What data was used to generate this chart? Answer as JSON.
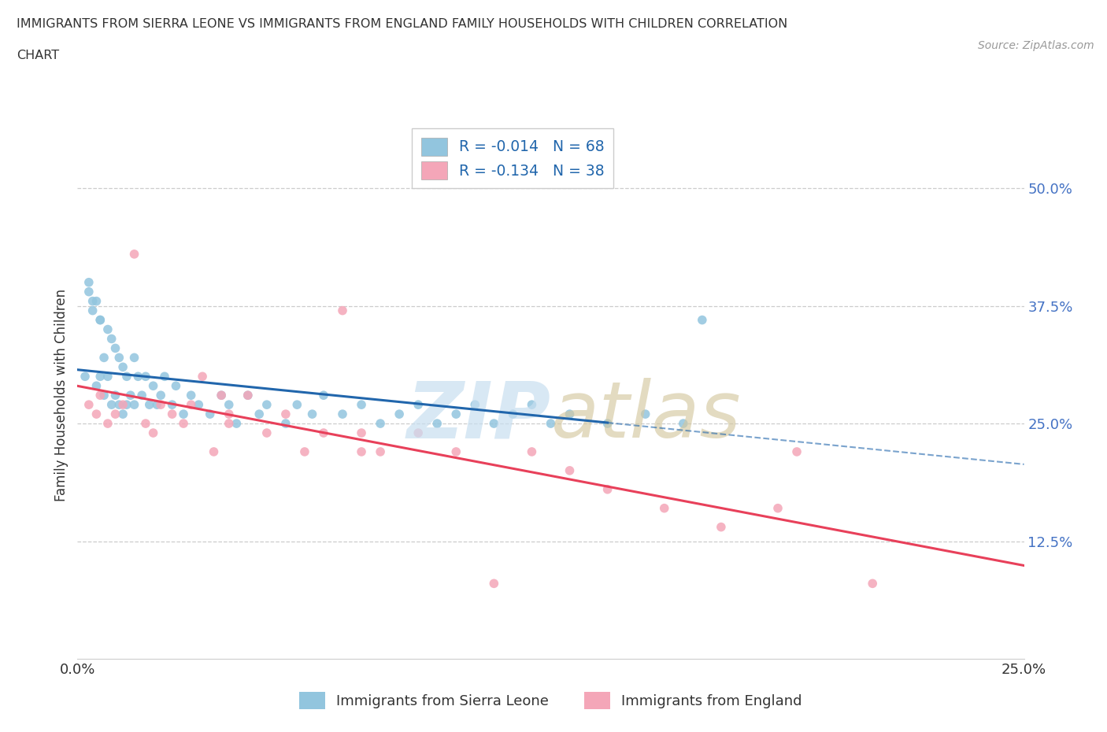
{
  "title_line1": "IMMIGRANTS FROM SIERRA LEONE VS IMMIGRANTS FROM ENGLAND FAMILY HOUSEHOLDS WITH CHILDREN CORRELATION",
  "title_line2": "CHART",
  "source": "Source: ZipAtlas.com",
  "ylabel": "Family Households with Children",
  "legend_label1": "Immigrants from Sierra Leone",
  "legend_label2": "Immigrants from England",
  "R1": -0.014,
  "N1": 68,
  "R2": -0.134,
  "N2": 38,
  "color1": "#92c5de",
  "color2": "#f4a6b8",
  "trendline1_color": "#2166ac",
  "trendline2_color": "#e8405a",
  "trendline1_dash_color": "#8ab0d0",
  "xlim": [
    0.0,
    0.25
  ],
  "ylim": [
    0.0,
    0.56
  ],
  "yticks": [
    0.125,
    0.25,
    0.375,
    0.5
  ],
  "xtick_labels_show": [
    "0.0%",
    "25.0%"
  ],
  "background_color": "#ffffff",
  "sl_x": [
    0.002,
    0.003,
    0.004,
    0.005,
    0.005,
    0.006,
    0.006,
    0.007,
    0.007,
    0.008,
    0.008,
    0.009,
    0.009,
    0.01,
    0.01,
    0.011,
    0.011,
    0.012,
    0.012,
    0.013,
    0.013,
    0.014,
    0.015,
    0.015,
    0.016,
    0.017,
    0.018,
    0.019,
    0.02,
    0.021,
    0.022,
    0.023,
    0.025,
    0.026,
    0.028,
    0.03,
    0.032,
    0.035,
    0.038,
    0.04,
    0.042,
    0.045,
    0.048,
    0.05,
    0.055,
    0.058,
    0.062,
    0.065,
    0.07,
    0.075,
    0.08,
    0.085,
    0.09,
    0.095,
    0.1,
    0.105,
    0.11,
    0.115,
    0.12,
    0.125,
    0.13,
    0.14,
    0.15,
    0.16,
    0.165,
    0.003,
    0.004,
    0.006
  ],
  "sl_y": [
    0.3,
    0.39,
    0.37,
    0.38,
    0.29,
    0.36,
    0.3,
    0.32,
    0.28,
    0.35,
    0.3,
    0.34,
    0.27,
    0.33,
    0.28,
    0.32,
    0.27,
    0.31,
    0.26,
    0.3,
    0.27,
    0.28,
    0.32,
    0.27,
    0.3,
    0.28,
    0.3,
    0.27,
    0.29,
    0.27,
    0.28,
    0.3,
    0.27,
    0.29,
    0.26,
    0.28,
    0.27,
    0.26,
    0.28,
    0.27,
    0.25,
    0.28,
    0.26,
    0.27,
    0.25,
    0.27,
    0.26,
    0.28,
    0.26,
    0.27,
    0.25,
    0.26,
    0.27,
    0.25,
    0.26,
    0.27,
    0.25,
    0.26,
    0.27,
    0.25,
    0.26,
    0.25,
    0.26,
    0.25,
    0.36,
    0.4,
    0.38,
    0.36
  ],
  "eng_x": [
    0.003,
    0.005,
    0.006,
    0.008,
    0.01,
    0.012,
    0.015,
    0.018,
    0.02,
    0.022,
    0.025,
    0.028,
    0.03,
    0.033,
    0.036,
    0.038,
    0.04,
    0.045,
    0.05,
    0.055,
    0.06,
    0.065,
    0.07,
    0.075,
    0.08,
    0.09,
    0.1,
    0.11,
    0.12,
    0.13,
    0.14,
    0.155,
    0.17,
    0.19,
    0.21,
    0.185,
    0.075,
    0.04
  ],
  "eng_y": [
    0.27,
    0.26,
    0.28,
    0.25,
    0.26,
    0.27,
    0.43,
    0.25,
    0.24,
    0.27,
    0.26,
    0.25,
    0.27,
    0.3,
    0.22,
    0.28,
    0.25,
    0.28,
    0.24,
    0.26,
    0.22,
    0.24,
    0.37,
    0.24,
    0.22,
    0.24,
    0.22,
    0.08,
    0.22,
    0.2,
    0.18,
    0.16,
    0.14,
    0.22,
    0.08,
    0.16,
    0.22,
    0.26
  ]
}
